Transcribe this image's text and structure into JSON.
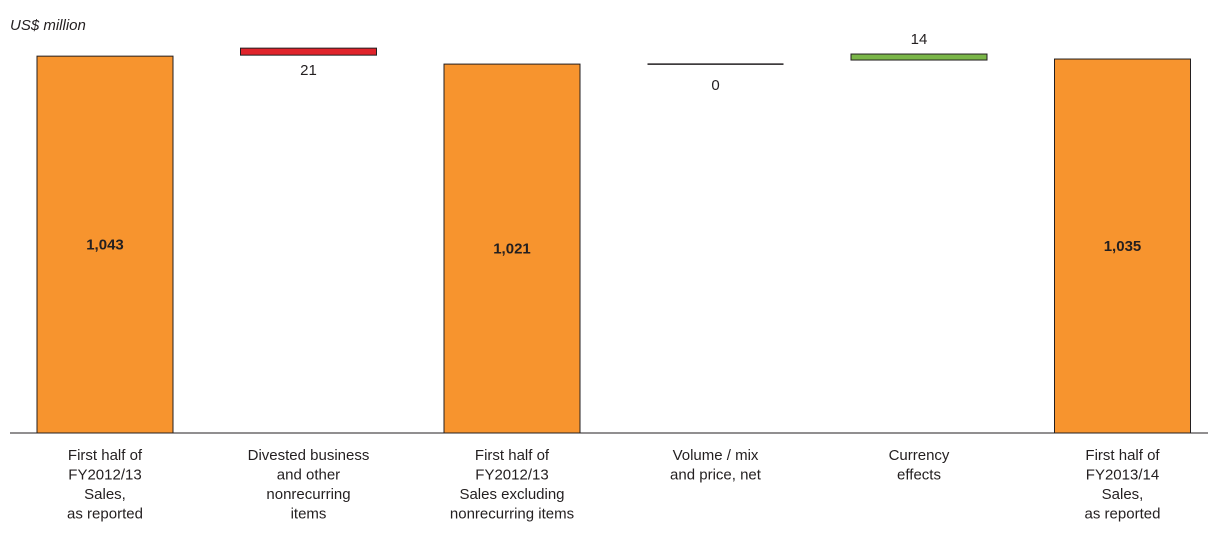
{
  "chart_data": {
    "type": "bar",
    "subtype": "waterfall",
    "unit_label": "US$ million",
    "categories": [
      [
        "First half of",
        "FY2012/13",
        "Sales,",
        "as reported"
      ],
      [
        "Divested business",
        "and other",
        "nonrecurring",
        "items"
      ],
      [
        "First half of",
        "FY2012/13",
        "Sales excluding",
        "nonrecurring items"
      ],
      [
        "Volume / mix",
        "and price, net"
      ],
      [
        "Currency",
        "effects"
      ],
      [
        "First half of",
        "FY2013/14",
        "Sales,",
        "as reported"
      ]
    ],
    "steps": [
      {
        "kind": "total",
        "value": 1043,
        "label": "1,043"
      },
      {
        "kind": "delta",
        "value": -21,
        "label": "21"
      },
      {
        "kind": "total",
        "value": 1021,
        "label": "1,021"
      },
      {
        "kind": "delta",
        "value": 0,
        "label": "0"
      },
      {
        "kind": "delta",
        "value": 14,
        "label": "14"
      },
      {
        "kind": "total",
        "value": 1035,
        "label": "1,035"
      }
    ],
    "colors": {
      "total": "#f7942e",
      "decrease": "#e0242b",
      "increase": "#7ab648",
      "neutral": "#231f20",
      "outline": "#231f20",
      "axis": "#231f20"
    },
    "ylim": [
      0,
      1060
    ]
  }
}
